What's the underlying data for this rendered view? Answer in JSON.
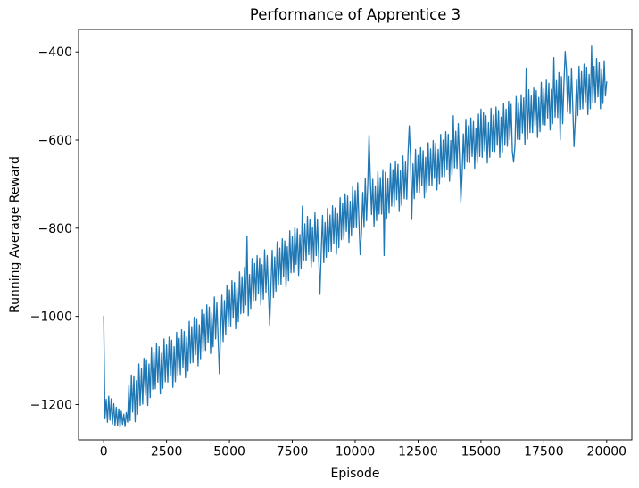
{
  "figure": {
    "title": "Performance of Apprentice 3",
    "xlabel": "Episode",
    "ylabel": "Running Average Reward"
  },
  "chart_data": {
    "type": "line",
    "title": "Performance of Apprentice 3",
    "xlabel": "Episode",
    "ylabel": "Running Average Reward",
    "grid": false,
    "legend": null,
    "background": "#ffffff",
    "spine_color": "#000000",
    "line_color": "#1f77b4",
    "xlim": [
      -1000,
      21000
    ],
    "ylim": [
      -1280,
      -349
    ],
    "x_ticks": [
      0,
      2500,
      5000,
      7500,
      10000,
      12500,
      15000,
      17500,
      20000
    ],
    "x_tick_labels": [
      "0",
      "2500",
      "5000",
      "7500",
      "10000",
      "12500",
      "15000",
      "17500",
      "20000"
    ],
    "y_ticks": [
      -400,
      -600,
      -800,
      -1000,
      -1200
    ],
    "y_tick_labels": [
      "−400",
      "−600",
      "−800",
      "−1000",
      "−1200"
    ],
    "series": [
      {
        "name": "Running Average Reward",
        "x_start": 0,
        "x_step": 50,
        "values": [
          -1000,
          -1232,
          -1188,
          -1240,
          -1181,
          -1235,
          -1187,
          -1244,
          -1198,
          -1248,
          -1206,
          -1248,
          -1210,
          -1252,
          -1215,
          -1245,
          -1222,
          -1250,
          -1218,
          -1240,
          -1155,
          -1236,
          -1133,
          -1217,
          -1135,
          -1239,
          -1146,
          -1222,
          -1108,
          -1202,
          -1118,
          -1199,
          -1095,
          -1179,
          -1098,
          -1202,
          -1108,
          -1184,
          -1071,
          -1165,
          -1080,
          -1164,
          -1062,
          -1149,
          -1069,
          -1176,
          -1084,
          -1163,
          -1051,
          -1148,
          -1065,
          -1149,
          -1047,
          -1134,
          -1054,
          -1161,
          -1069,
          -1148,
          -1036,
          -1133,
          -1050,
          -1132,
          -1030,
          -1115,
          -1034,
          -1139,
          -1047,
          -1124,
          -1011,
          -1106,
          -1023,
          -1105,
          -1002,
          -1087,
          -1007,
          -1112,
          -1019,
          -1096,
          -984,
          -1079,
          -995,
          -1077,
          -974,
          -1060,
          -979,
          -1084,
          -992,
          -1069,
          -956,
          -1051,
          -968,
          -1050,
          -1130,
          -1032,
          -952,
          -1057,
          -964,
          -1041,
          -929,
          -1024,
          -940,
          -1022,
          -919,
          -1004,
          -923,
          -1028,
          -935,
          -1012,
          -899,
          -994,
          -910,
          -992,
          -889,
          -974,
          -818,
          -998,
          -905,
          -982,
          -869,
          -964,
          -880,
          -963,
          -862,
          -948,
          -868,
          -974,
          -883,
          -961,
          -849,
          -945,
          -862,
          -946,
          -1020,
          -930,
          -850,
          -957,
          -865,
          -943,
          -831,
          -928,
          -845,
          -927,
          -824,
          -910,
          -829,
          -934,
          -842,
          -919,
          -806,
          -901,
          -818,
          -900,
          -797,
          -882,
          -802,
          -907,
          -814,
          -891,
          -750,
          -874,
          -790,
          -874,
          -773,
          -860,
          -781,
          -888,
          -797,
          -876,
          -765,
          -862,
          -780,
          -864,
          -950,
          -850,
          -771,
          -878,
          -787,
          -866,
          -755,
          -852,
          -770,
          -852,
          -749,
          -835,
          -754,
          -859,
          -767,
          -844,
          -731,
          -826,
          -743,
          -825,
          -722,
          -807,
          -727,
          -832,
          -739,
          -816,
          -704,
          -799,
          -715,
          -799,
          -697,
          -784,
          -860,
          -811,
          -719,
          -798,
          -686,
          -783,
          -700,
          -589,
          -682,
          -769,
          -689,
          -796,
          -704,
          -783,
          -671,
          -768,
          -685,
          -768,
          -667,
          -862,
          -673,
          -779,
          -688,
          -766,
          -654,
          -750,
          -667,
          -751,
          -649,
          -735,
          -655,
          -762,
          -670,
          -748,
          -636,
          -733,
          -650,
          -734,
          -632,
          -568,
          -639,
          -780,
          -654,
          -733,
          -621,
          -718,
          -635,
          -719,
          -617,
          -704,
          -624,
          -731,
          -639,
          -718,
          -606,
          -703,
          -620,
          -703,
          -601,
          -687,
          -607,
          -713,
          -621,
          -699,
          -587,
          -683,
          -600,
          -683,
          -581,
          -667,
          -587,
          -693,
          -601,
          -679,
          -545,
          -663,
          -580,
          -664,
          -563,
          -649,
          -740,
          -677,
          -586,
          -664,
          -553,
          -650,
          -568,
          -651,
          -550,
          -637,
          -558,
          -664,
          -573,
          -652,
          -541,
          -637,
          -530,
          -639,
          -538,
          -624,
          -545,
          -652,
          -561,
          -639,
          -528,
          -625,
          -543,
          -626,
          -525,
          -612,
          -533,
          -639,
          -548,
          -627,
          -516,
          -612,
          -530,
          -614,
          -512,
          -599,
          -519,
          -626,
          -650,
          -613,
          -501,
          -598,
          -515,
          -599,
          -497,
          -584,
          -504,
          -611,
          -437,
          -598,
          -486,
          -583,
          -500,
          -583,
          -482,
          -568,
          -488,
          -594,
          -503,
          -581,
          -469,
          -565,
          -483,
          -566,
          -464,
          -550,
          -471,
          -577,
          -485,
          -563,
          -413,
          -548,
          -465,
          -549,
          -447,
          -600,
          -456,
          -563,
          -472,
          -399,
          -440,
          -537,
          -455,
          -540,
          -437,
          -526,
          -615,
          -555,
          -464,
          -544,
          -433,
          -530,
          -445,
          -529,
          -428,
          -514,
          -435,
          -542,
          -451,
          -529,
          -387,
          -515,
          -433,
          -516,
          -415,
          -502,
          -423,
          -529,
          -438,
          -517,
          -420,
          -500,
          -468
        ]
      }
    ]
  }
}
